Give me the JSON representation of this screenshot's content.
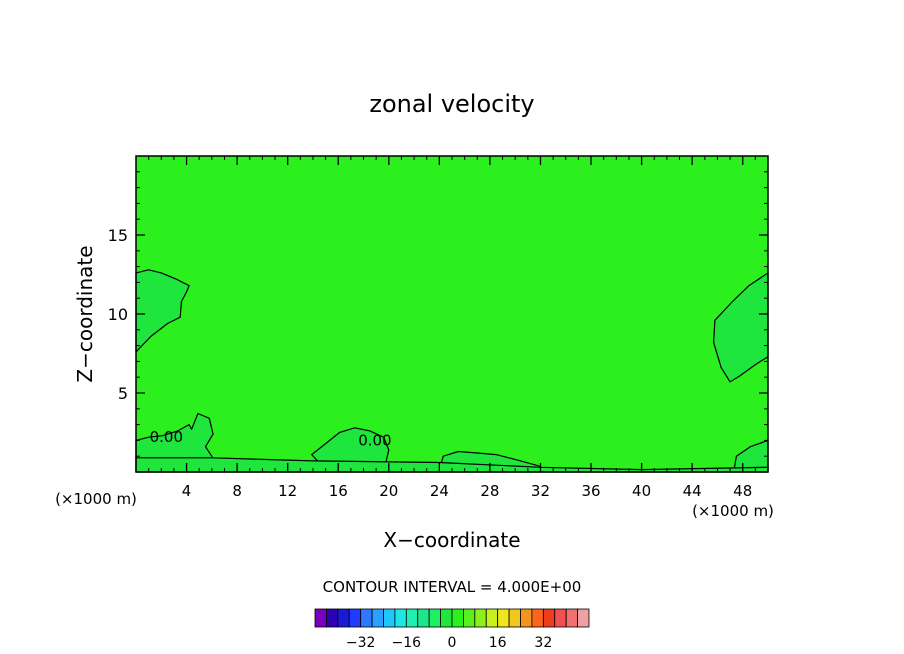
{
  "chart_data": {
    "type": "heatmap",
    "title": "zonal velocity",
    "xlabel": "X−coordinate",
    "ylabel": "Z−coordinate",
    "x_unit_left": "(×1000 m)",
    "x_unit_right": "(×1000 m)",
    "xlim": [
      0,
      50
    ],
    "ylim": [
      0,
      20
    ],
    "x_ticks": [
      4,
      8,
      12,
      16,
      20,
      24,
      28,
      32,
      36,
      40,
      44,
      48
    ],
    "x_tick_labels": [
      "4",
      "8",
      "12",
      "16",
      "20",
      "24",
      "28",
      "32",
      "36",
      "40",
      "44",
      "48"
    ],
    "y_ticks": [
      5,
      10,
      15
    ],
    "y_tick_labels": [
      "5",
      "10",
      "15"
    ],
    "background_value": 2,
    "contour_labels": [
      {
        "text": "0.00",
        "x": 2.4,
        "y": 2.2
      },
      {
        "text": "0.00",
        "x": 18.9,
        "y": 2.0
      }
    ],
    "regions": [
      {
        "name": "upper-left lobe",
        "value": -2,
        "points": [
          [
            0,
            12.6
          ],
          [
            1,
            12.8
          ],
          [
            2,
            12.6
          ],
          [
            3.2,
            12.2
          ],
          [
            4.2,
            11.8
          ],
          [
            4,
            11.4
          ],
          [
            3.6,
            10.8
          ],
          [
            3.5,
            9.8
          ],
          [
            2.5,
            9.4
          ],
          [
            1.2,
            8.6
          ],
          [
            0,
            7.6
          ]
        ]
      },
      {
        "name": "upper-right lobe",
        "value": -2,
        "points": [
          [
            50,
            12.6
          ],
          [
            48.5,
            11.8
          ],
          [
            47.2,
            10.8
          ],
          [
            45.8,
            9.6
          ],
          [
            45.7,
            8.2
          ],
          [
            46.3,
            6.6
          ],
          [
            47,
            5.7
          ],
          [
            47.8,
            6.1
          ],
          [
            49,
            6.8
          ],
          [
            50,
            7.3
          ]
        ]
      },
      {
        "name": "lower-left blob",
        "value": -2,
        "points": [
          [
            0,
            2
          ],
          [
            1,
            2.2
          ],
          [
            2.1,
            2.3
          ],
          [
            3.3,
            2.6
          ],
          [
            4.2,
            3
          ],
          [
            4.4,
            2.7
          ],
          [
            4.9,
            3.7
          ],
          [
            5.8,
            3.4
          ],
          [
            6.1,
            2.4
          ],
          [
            5.5,
            1.6
          ],
          [
            6,
            1
          ],
          [
            6.5,
            0.1
          ],
          [
            0,
            0.1
          ]
        ]
      },
      {
        "name": "central blob",
        "value": -2,
        "points": [
          [
            13.9,
            1.1
          ],
          [
            15,
            1.8
          ],
          [
            16.1,
            2.5
          ],
          [
            17.3,
            2.8
          ],
          [
            18.5,
            2.6
          ],
          [
            19.6,
            2.2
          ],
          [
            20,
            1.4
          ],
          [
            19.8,
            0.7
          ],
          [
            19.3,
            0.1
          ],
          [
            13.2,
            0.1
          ],
          [
            14.6,
            0.5
          ]
        ]
      },
      {
        "name": "right-center patch",
        "value": -2,
        "points": [
          [
            24.3,
            1
          ],
          [
            25.5,
            1.3
          ],
          [
            27,
            1.2
          ],
          [
            28.5,
            1.1
          ],
          [
            30,
            0.8
          ],
          [
            31.8,
            0.4
          ],
          [
            32.3,
            0.1
          ],
          [
            24,
            0.1
          ]
        ]
      },
      {
        "name": "lower-right patch",
        "value": -2,
        "points": [
          [
            47.5,
            1
          ],
          [
            48.6,
            1.6
          ],
          [
            50,
            2
          ],
          [
            50,
            0.1
          ],
          [
            47.3,
            0.1
          ]
        ]
      },
      {
        "name": "bottom strip",
        "value": -2,
        "points": [
          [
            0,
            0.9
          ],
          [
            6,
            0.9
          ],
          [
            14,
            0.7
          ],
          [
            24,
            0.6
          ],
          [
            32,
            0.3
          ],
          [
            40,
            0.15
          ],
          [
            50,
            0.3
          ],
          [
            50,
            0
          ],
          [
            0,
            0
          ]
        ]
      }
    ],
    "contour_interval_label": "CONTOUR INTERVAL = 4.000E+00",
    "colorbar": {
      "colors": [
        "#7a00c0",
        "#2d00b4",
        "#1a1ad2",
        "#1e3cff",
        "#2e78ff",
        "#2ea0ff",
        "#1ec8ff",
        "#1ee6e6",
        "#1ef0b4",
        "#1ee68c",
        "#1ef064",
        "#1ee63c",
        "#2cf01e",
        "#5af01e",
        "#8cf01e",
        "#c8f01e",
        "#f0e61e",
        "#f0c81e",
        "#f0961e",
        "#ff641e",
        "#f03c1e",
        "#f05050",
        "#f07070",
        "#f0a0a0"
      ],
      "ticks": [
        -32,
        -16,
        0,
        16,
        32
      ],
      "tick_labels": [
        "−32",
        "−16",
        "0",
        "16",
        "32"
      ],
      "vmin": -48,
      "vmax": 48
    }
  }
}
